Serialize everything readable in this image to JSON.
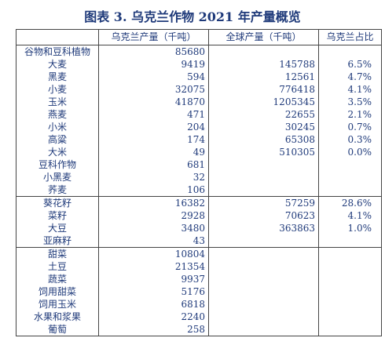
{
  "title": "图表 3.  乌克兰作物 2021 年产量概览",
  "headers": [
    "",
    "乌克兰产量（千吨）",
    "全球产量（千吨）",
    "乌克兰占比"
  ],
  "groups": [
    [
      {
        "name": "谷物和豆科植物",
        "ukraine": "85680",
        "world": "",
        "share": ""
      },
      {
        "name": "大麦",
        "ukraine": "9419",
        "world": "145788",
        "share": "6.5%"
      },
      {
        "name": "黑麦",
        "ukraine": "594",
        "world": "12561",
        "share": "4.7%"
      },
      {
        "name": "小麦",
        "ukraine": "32075",
        "world": "776418",
        "share": "4.1%"
      },
      {
        "name": "玉米",
        "ukraine": "41870",
        "world": "1205345",
        "share": "3.5%"
      },
      {
        "name": "燕麦",
        "ukraine": "471",
        "world": "22655",
        "share": "2.1%"
      },
      {
        "name": "小米",
        "ukraine": "204",
        "world": "30245",
        "share": "0.7%"
      },
      {
        "name": "高粱",
        "ukraine": "174",
        "world": "65308",
        "share": "0.3%"
      },
      {
        "name": "大米",
        "ukraine": "49",
        "world": "510305",
        "share": "0.0%"
      },
      {
        "name": "豆科作物",
        "ukraine": "681",
        "world": "",
        "share": ""
      },
      {
        "name": "小黑麦",
        "ukraine": "32",
        "world": "",
        "share": ""
      },
      {
        "name": "荞麦",
        "ukraine": "106",
        "world": "",
        "share": ""
      }
    ],
    [
      {
        "name": "葵花籽",
        "ukraine": "16382",
        "world": "57259",
        "share": "28.6%"
      },
      {
        "name": "菜籽",
        "ukraine": "2928",
        "world": "70623",
        "share": "4.1%"
      },
      {
        "name": "大豆",
        "ukraine": "3480",
        "world": "363863",
        "share": "1.0%"
      },
      {
        "name": "亚麻籽",
        "ukraine": "43",
        "world": "",
        "share": ""
      }
    ],
    [
      {
        "name": "甜菜",
        "ukraine": "10804",
        "world": "",
        "share": ""
      },
      {
        "name": "土豆",
        "ukraine": "21354",
        "world": "",
        "share": ""
      },
      {
        "name": "蔬菜",
        "ukraine": "9937",
        "world": "",
        "share": ""
      },
      {
        "name": "饲用甜菜",
        "ukraine": "5176",
        "world": "",
        "share": ""
      },
      {
        "name": "饲用玉米",
        "ukraine": "6818",
        "world": "",
        "share": ""
      },
      {
        "name": "水果和浆果",
        "ukraine": "2240",
        "world": "",
        "share": ""
      },
      {
        "name": "葡萄",
        "ukraine": "258",
        "world": "",
        "share": ""
      }
    ]
  ]
}
